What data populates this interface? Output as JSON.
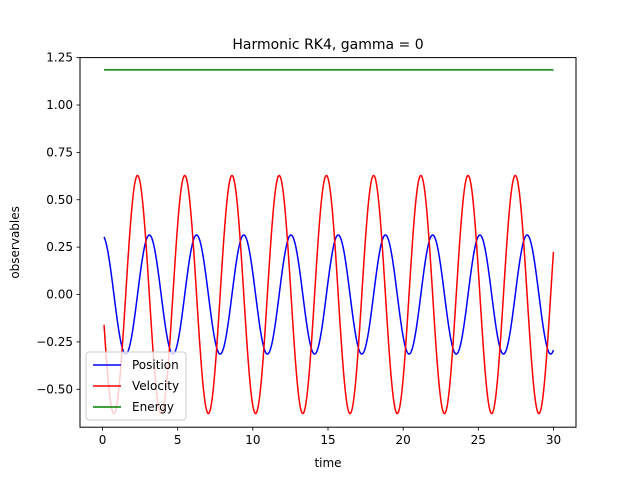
{
  "chart_data": {
    "type": "line",
    "title": "Harmonic RK4, gamma = 0",
    "xlabel": "time",
    "ylabel": "observables",
    "xlim": [
      -1.5,
      31.5
    ],
    "ylim": [
      -0.7,
      1.25
    ],
    "xticks": [
      0,
      5,
      10,
      15,
      20,
      25,
      30
    ],
    "xtick_labels": [
      "0",
      "5",
      "10",
      "15",
      "20",
      "25",
      "30"
    ],
    "yticks": [
      -0.5,
      -0.25,
      0.0,
      0.25,
      0.5,
      0.75,
      1.0,
      1.25
    ],
    "ytick_labels": [
      "−0.50",
      "−0.25",
      "0.00",
      "0.25",
      "0.50",
      "0.75",
      "1.00",
      "1.25"
    ],
    "grid": false,
    "legend_placement": "lower-left",
    "model": {
      "t_start": 0.1,
      "t_end": 30.0,
      "omega": 2.0,
      "position_amplitude": 0.314,
      "velocity_amplitude": 0.628,
      "phase": 0.057,
      "energy": 1.185
    },
    "series": [
      {
        "name": "Position",
        "color": "#0000ff",
        "quantity": "position"
      },
      {
        "name": "Velocity",
        "color": "#ff0000",
        "quantity": "velocity"
      },
      {
        "name": "Energy",
        "color": "#008000",
        "quantity": "energy"
      }
    ]
  }
}
